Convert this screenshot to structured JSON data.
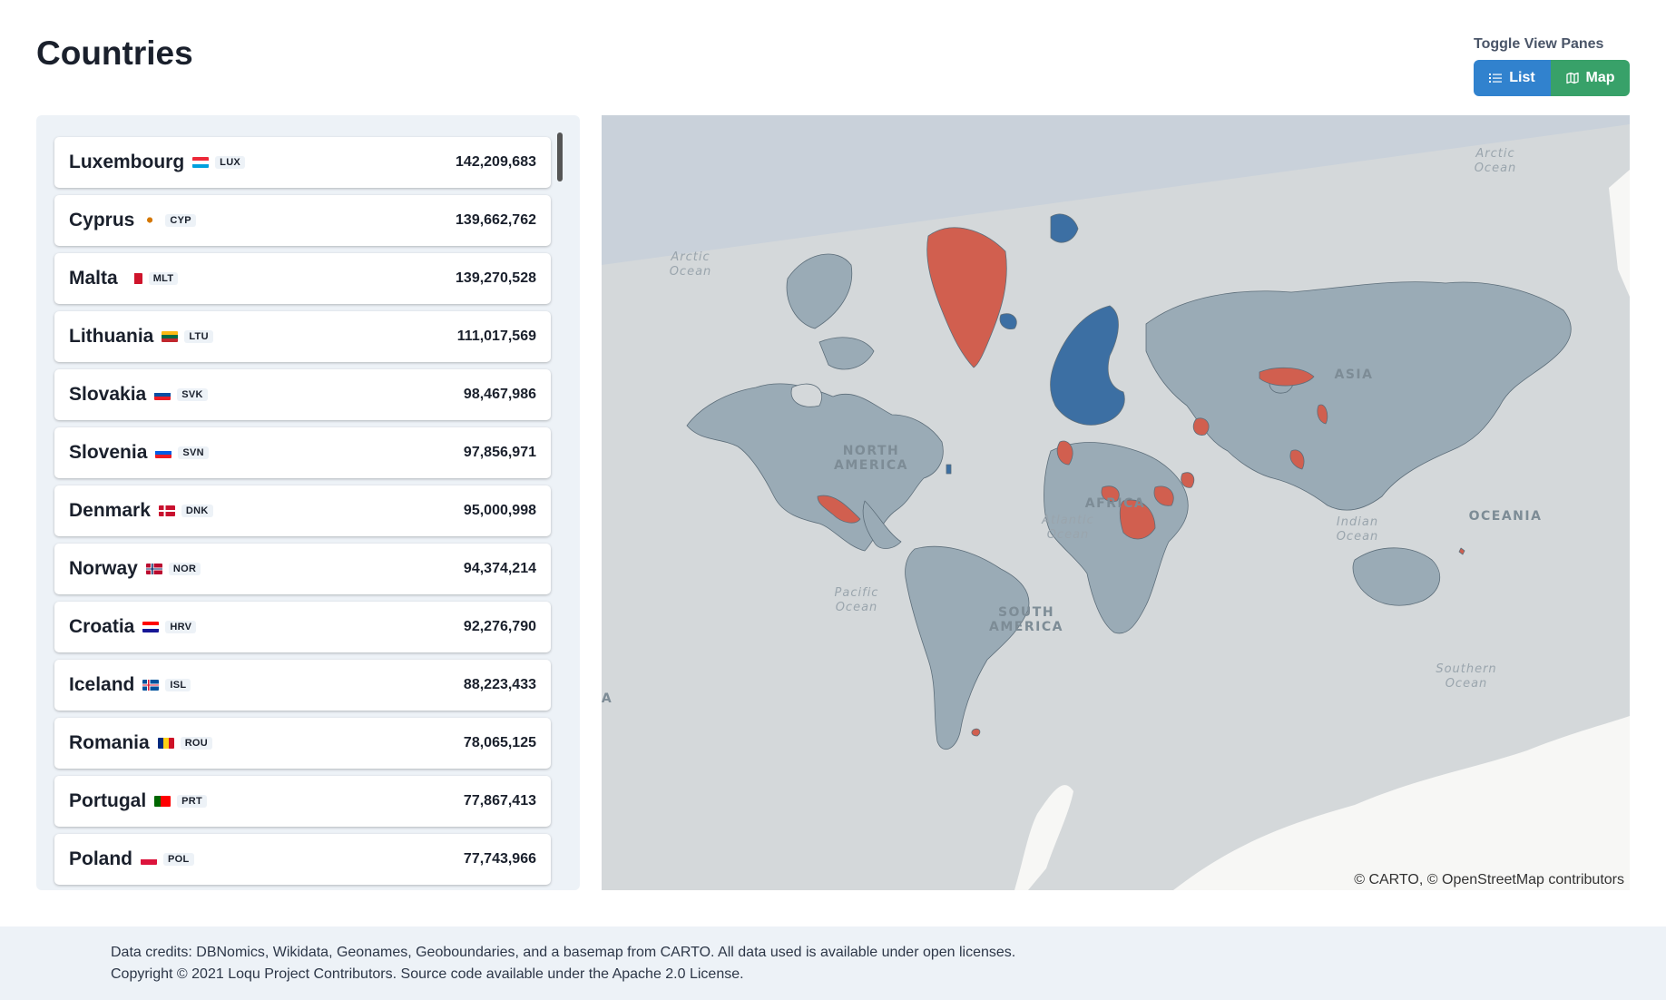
{
  "header": {
    "title": "Countries",
    "toggle_label": "Toggle View Panes",
    "list_button": "List",
    "map_button": "Map"
  },
  "countries": [
    {
      "name": "Luxembourg",
      "code": "LUX",
      "value": "142,209,683",
      "flag": "lux"
    },
    {
      "name": "Cyprus",
      "code": "CYP",
      "value": "139,662,762",
      "flag": "cyp"
    },
    {
      "name": "Malta",
      "code": "MLT",
      "value": "139,270,528",
      "flag": "mlt"
    },
    {
      "name": "Lithuania",
      "code": "LTU",
      "value": "111,017,569",
      "flag": "ltu"
    },
    {
      "name": "Slovakia",
      "code": "SVK",
      "value": "98,467,986",
      "flag": "svk"
    },
    {
      "name": "Slovenia",
      "code": "SVN",
      "value": "97,856,971",
      "flag": "svn"
    },
    {
      "name": "Denmark",
      "code": "DNK",
      "value": "95,000,998",
      "flag": "dnk"
    },
    {
      "name": "Norway",
      "code": "NOR",
      "value": "94,374,214",
      "flag": "nor"
    },
    {
      "name": "Croatia",
      "code": "HRV",
      "value": "92,276,790",
      "flag": "hrv"
    },
    {
      "name": "Iceland",
      "code": "ISL",
      "value": "88,223,433",
      "flag": "isl"
    },
    {
      "name": "Romania",
      "code": "ROU",
      "value": "78,065,125",
      "flag": "rou"
    },
    {
      "name": "Portugal",
      "code": "PRT",
      "value": "77,867,413",
      "flag": "prt"
    },
    {
      "name": "Poland",
      "code": "POL",
      "value": "77,743,966",
      "flag": "pol"
    }
  ],
  "map": {
    "labels": {
      "arctic_ocean_left": [
        "Arctic",
        "Ocean"
      ],
      "arctic_ocean_right": [
        "Arctic",
        "Ocean"
      ],
      "north_america": [
        "NORTH",
        "AMERICA"
      ],
      "south_america": [
        "SOUTH",
        "AMERICA"
      ],
      "atlantic_ocean": [
        "Atlantic",
        "Ocean"
      ],
      "pacific_ocean": [
        "Pacific",
        "Ocean"
      ],
      "indian_ocean": [
        "Indian",
        "Ocean"
      ],
      "southern_ocean": [
        "Southern",
        "Ocean"
      ],
      "asia": "ASIA",
      "africa": "AFRICA",
      "oceania": "OCEANIA",
      "edge_letter": "A"
    },
    "attribution": {
      "carto": "© CARTO, ©",
      "osm": "OpenStreetMap",
      "contributors": "contributors"
    },
    "colors": {
      "land": "#9aabb6",
      "highlight": "#d15f4f",
      "selected": "#3c6fa3",
      "ocean": "#d4d8da",
      "polar": "#f7f7f5"
    }
  },
  "footer": {
    "line1": "Data credits: DBNomics, Wikidata, Geonames, Geoboundaries, and a basemap from CARTO. All data used is available under open licenses.",
    "line2": "Copyright © 2021 Loqu Project Contributors. Source code available under the Apache 2.0 License."
  }
}
